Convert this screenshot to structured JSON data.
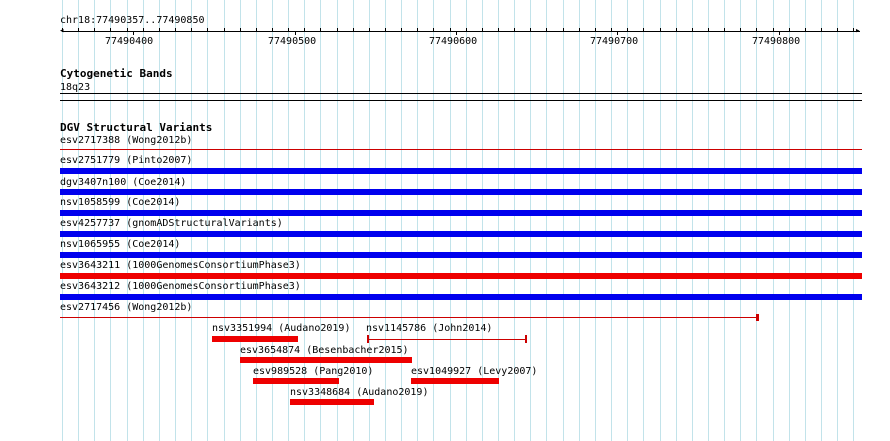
{
  "ruler": {
    "location": "chr18:77490357..77490850",
    "tick_labels": [
      "77490400",
      "77490500",
      "77490600",
      "77490700",
      "77490800"
    ]
  },
  "cytoband": {
    "track_title": "Cytogenetic Bands",
    "band": "18q23"
  },
  "dgv": {
    "track_title": "DGV Structural Variants",
    "full_rows": [
      {
        "label": "esv2717388 (Wong2012b)",
        "color": "#cc0000",
        "style": "thin"
      },
      {
        "label": "esv2751779 (Pinto2007)",
        "color": "#0000ee",
        "style": "thick"
      },
      {
        "label": "dgv3407n100 (Coe2014)",
        "color": "#0000ee",
        "style": "thick"
      },
      {
        "label": "nsv1058599 (Coe2014)",
        "color": "#0000ee",
        "style": "thick"
      },
      {
        "label": "esv4257737 (gnomADStructuralVariants)",
        "color": "#0000ee",
        "style": "thick"
      },
      {
        "label": "nsv1065955 (Coe2014)",
        "color": "#0000ee",
        "style": "thick"
      },
      {
        "label": "esv3643211 (1000GenomesConsortiumPhase3)",
        "color": "#ee0000",
        "style": "thick"
      },
      {
        "label": "esv3643212 (1000GenomesConsortiumPhase3)",
        "color": "#0000ee",
        "style": "thick"
      },
      {
        "label": "esv2717456 (Wong2012b)",
        "color": "#cc0000",
        "style": "thin-end"
      }
    ],
    "short_features": [
      {
        "label": "nsv3351994 (Audano2019)",
        "color": "#ee0000",
        "style": "thick"
      },
      {
        "label": "nsv1145786 (John2014)",
        "color": "#cc0000",
        "style": "thin"
      },
      {
        "label": "esv3654874 (Besenbacher2015)",
        "color": "#ee0000",
        "style": "thick"
      },
      {
        "label": "esv989528 (Pang2010)",
        "color": "#ee0000",
        "style": "thick"
      },
      {
        "label": "esv1049927 (Levy2007)",
        "color": "#ee0000",
        "style": "thick"
      },
      {
        "label": "nsv3348684 (Audano2019)",
        "color": "#ee0000",
        "style": "thick"
      }
    ]
  }
}
